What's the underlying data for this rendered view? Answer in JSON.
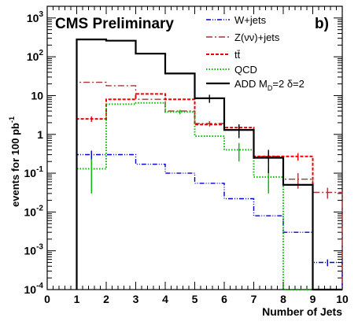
{
  "chart_data": {
    "type": "line",
    "title": "CMS Preliminary",
    "panel_label": "b)",
    "xlabel": "Number of Jets",
    "ylabel": "events for 100 pb",
    "ylabel_sup": "-1",
    "xlim": [
      0,
      10
    ],
    "ylim": [
      0.0001,
      2000
    ],
    "yscale": "log",
    "x_ticks": [
      "0",
      "1",
      "2",
      "3",
      "4",
      "5",
      "6",
      "7",
      "8",
      "9",
      "10"
    ],
    "y_ticks": [
      {
        "value": 0.0001,
        "base": "10",
        "exp": "-4"
      },
      {
        "value": 0.001,
        "base": "10",
        "exp": "-3"
      },
      {
        "value": 0.01,
        "base": "10",
        "exp": "-2"
      },
      {
        "value": 0.1,
        "base": "10",
        "exp": "-1"
      },
      {
        "value": 1,
        "base": "1",
        "exp": ""
      },
      {
        "value": 10,
        "base": "10",
        "exp": ""
      },
      {
        "value": 100,
        "base": "10",
        "exp": "2"
      },
      {
        "value": 1000,
        "base": "10",
        "exp": "3"
      }
    ],
    "bin_edges": [
      1,
      2,
      3,
      4,
      5,
      6,
      7,
      8,
      9,
      10
    ],
    "legend_position": "top-right",
    "series": [
      {
        "name": "W+jets",
        "color": "#0000cc",
        "dash": "6,2,1,2,1,2",
        "width": 1.4,
        "values": [
          0.3,
          0.3,
          0.17,
          0.1,
          0.055,
          0.022,
          0.008,
          0.003,
          0.0005
        ],
        "errors": [
          0.08,
          0,
          0,
          0,
          0,
          0,
          0,
          0,
          0.0001
        ]
      },
      {
        "name": "Z(νν)+jets",
        "color": "#aa3333",
        "dash": "8,3,2,3",
        "width": 1.4,
        "values": [
          22,
          18,
          8,
          4,
          1.9,
          1.3,
          0.27,
          0.07,
          0.032
        ],
        "errors": [
          0,
          0,
          0,
          0,
          0.3,
          0.3,
          0.08,
          0.03,
          0.01
        ]
      },
      {
        "name": "tt̄",
        "color": "#ee0000",
        "dash": "4,2",
        "width": 2,
        "values": [
          2.5,
          8,
          11,
          8,
          1.8,
          1.5,
          0.27,
          0.27,
          0.0001
        ],
        "errors": [
          0.4,
          0,
          0,
          0,
          0,
          0.3,
          0.06,
          0.06,
          0
        ]
      },
      {
        "name": "QCD",
        "color": "#00bb00",
        "dash": "1.5,2",
        "width": 2,
        "values": [
          0.13,
          6,
          6.5,
          3.8,
          0.9,
          0.4,
          0.08,
          0.0001,
          0.0001
        ],
        "errors": [
          0.1,
          0,
          0,
          0.5,
          0,
          0.2,
          0.05,
          0,
          0
        ]
      },
      {
        "name": "ADD M_D=2 δ=2",
        "name_parts": [
          "ADD M",
          "D",
          "=2 δ=2"
        ],
        "color": "#000000",
        "dash": "",
        "width": 2.2,
        "values": [
          280,
          260,
          120,
          37,
          8.5,
          1.3,
          0.25,
          0.05,
          0.0001
        ],
        "errors": [
          0,
          0,
          0,
          0,
          2,
          0.5,
          0.15,
          0,
          0
        ]
      }
    ]
  }
}
